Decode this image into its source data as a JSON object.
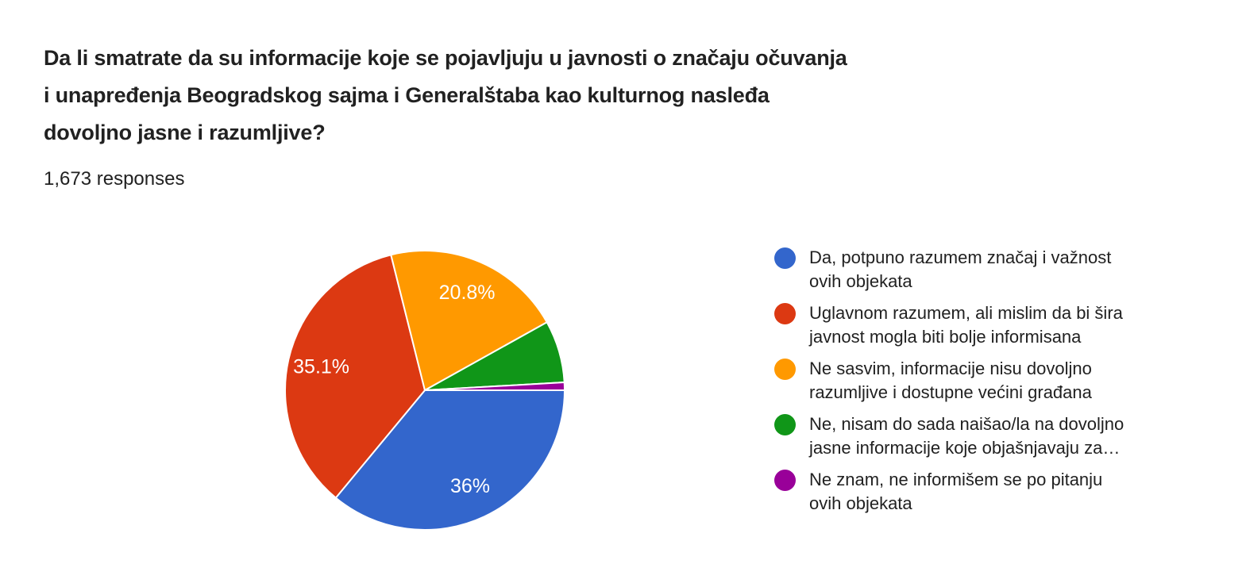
{
  "chart_data": {
    "type": "pie",
    "title": "Da li smatrate da su informacije koje se pojavljuju u javnosti o značaju očuvanja i unapređenja Beogradskog sajma i Generalštaba kao kulturnog nasleđa dovoljno jasne i razumljive?",
    "title_lines": [
      "Da li smatrate da su informacije koje se pojavljuju u javnosti o značaju očuvanja",
      "i unapređenja Beogradskog sajma i Generalštaba kao kulturnog nasleđa",
      "dovoljno jasne i razumljive?"
    ],
    "subtitle": "1,673 responses",
    "legend_position": "right",
    "start_angle": "3-oclock",
    "direction": "clockwise",
    "series": [
      {
        "label": "Da, potpuno razumem značaj i važnost ovih objekata",
        "label_lines": [
          "Da, potpuno razumem značaj i važnost",
          "ovih objekata"
        ],
        "value": 36.0,
        "display": "36%",
        "color": "#3366CC"
      },
      {
        "label": "Uglavnom razumem, ali mislim da bi šira javnost mogla biti bolje informisana",
        "label_lines": [
          "Uglavnom razumem, ali mislim da bi šira",
          "javnost mogla biti bolje informisana"
        ],
        "value": 35.1,
        "display": "35.1%",
        "color": "#DC3912"
      },
      {
        "label": "Ne sasvim, informacije nisu dovoljno razumljive i dostupne većini građana",
        "label_lines": [
          "Ne sasvim, informacije nisu dovoljno",
          "razumljive i dostupne većini građana"
        ],
        "value": 20.8,
        "display": "20.8%",
        "color": "#FF9900"
      },
      {
        "label": "Ne, nisam do sada naišao/la na dovoljno jasne informacije koje objašnjavaju za…",
        "label_lines": [
          "Ne, nisam do sada naišao/la na dovoljno",
          "jasne informacije koje objašnjavaju za…"
        ],
        "value": 7.2,
        "display": "",
        "color": "#109618"
      },
      {
        "label": "Ne znam, ne informišem se po pitanju ovih objekata",
        "label_lines": [
          "Ne znam, ne informišem se po pitanju",
          "ovih objekata"
        ],
        "value": 0.9,
        "display": "",
        "color": "#990099"
      }
    ]
  }
}
